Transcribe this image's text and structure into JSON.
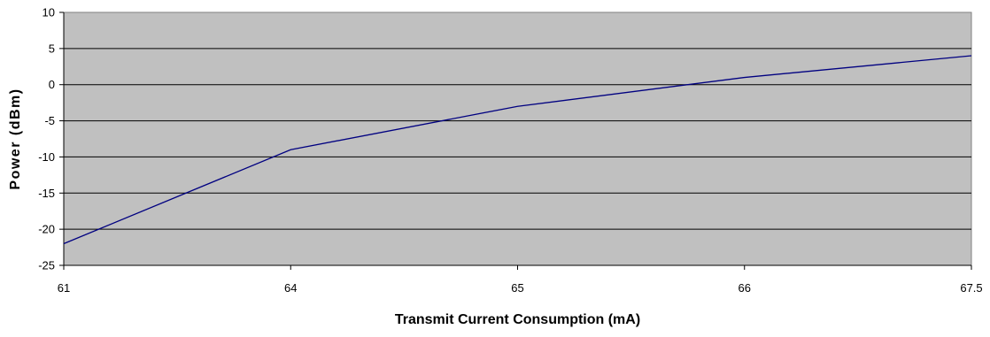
{
  "chart_data": {
    "type": "line",
    "title": "",
    "xlabel": "Transmit Current Consumption (mA)",
    "ylabel": "Power (dBm)",
    "categories": [
      "61",
      "64",
      "65",
      "66",
      "67.5"
    ],
    "series": [
      {
        "values": [
          -22,
          -9,
          -3,
          1,
          4
        ],
        "color": "#000080"
      }
    ],
    "ylim": [
      -25,
      10
    ],
    "yticks": [
      10,
      5,
      0,
      -5,
      -10,
      -15,
      -20,
      -25
    ],
    "grid": true,
    "legend": "none",
    "plot_background": "#c0c0c0",
    "gridline_color": "#000000"
  }
}
